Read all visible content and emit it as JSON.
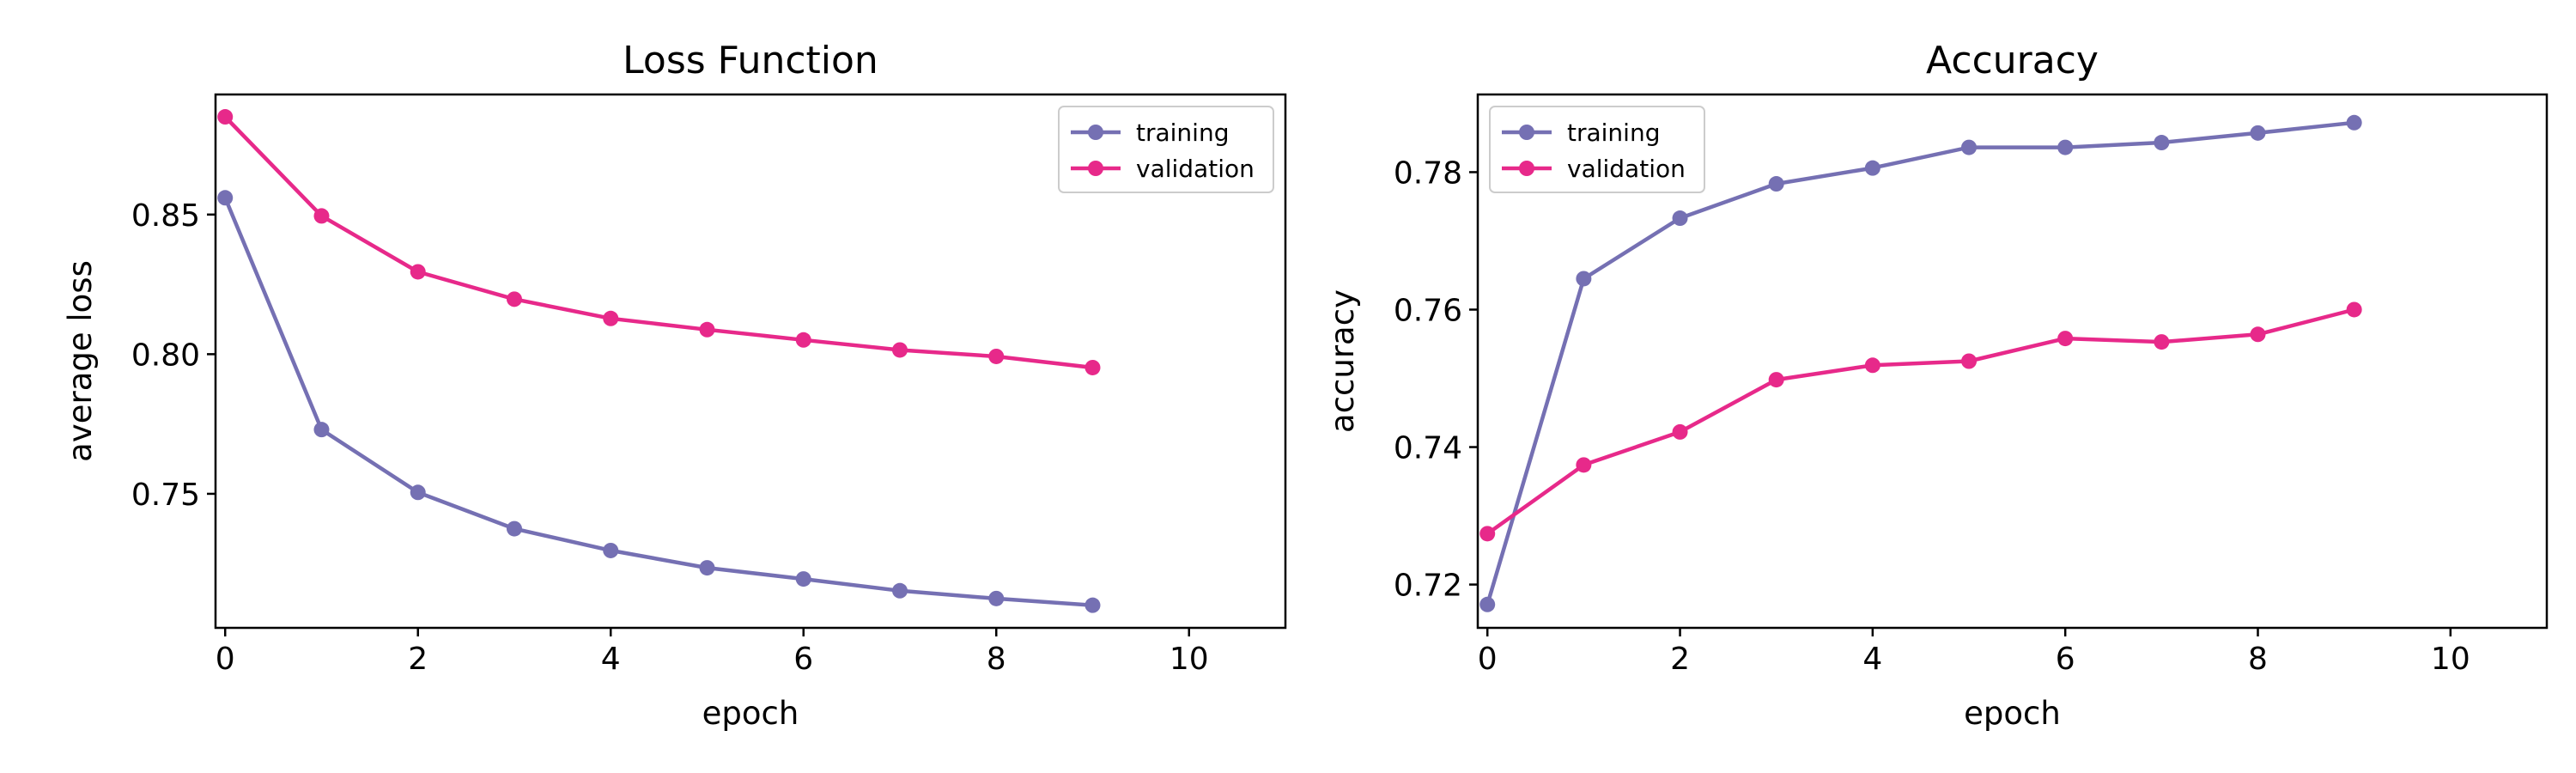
{
  "chart_data": [
    {
      "type": "line",
      "title": "Loss Function",
      "xlabel": "epoch",
      "ylabel": "average loss",
      "xlim": [
        -0.1,
        11
      ],
      "ylim": [
        0.702,
        0.893
      ],
      "xticks": [
        0,
        2,
        4,
        6,
        8,
        10
      ],
      "yticks": [
        0.75,
        0.8,
        0.85
      ],
      "ytick_labels": [
        "0.75",
        "0.80",
        "0.85"
      ],
      "legend_position": "top-right",
      "grid": false,
      "x": [
        0,
        1,
        2,
        3,
        4,
        5,
        6,
        7,
        8,
        9
      ],
      "series": [
        {
          "name": "training",
          "color": "#7570b3",
          "values": [
            0.856,
            0.773,
            0.7505,
            0.7375,
            0.7297,
            0.7235,
            0.7195,
            0.7153,
            0.7125,
            0.7101
          ]
        },
        {
          "name": "validation",
          "color": "#e7298a",
          "values": [
            0.885,
            0.8495,
            0.8295,
            0.8197,
            0.8128,
            0.8088,
            0.8051,
            0.8015,
            0.7992,
            0.7952
          ]
        }
      ]
    },
    {
      "type": "line",
      "title": "Accuracy",
      "xlabel": "epoch",
      "ylabel": "accuracy",
      "xlim": [
        -0.1,
        11
      ],
      "ylim": [
        0.7137,
        0.7913
      ],
      "xticks": [
        0,
        2,
        4,
        6,
        8,
        10
      ],
      "yticks": [
        0.72,
        0.74,
        0.76,
        0.78
      ],
      "ytick_labels": [
        "0.72",
        "0.74",
        "0.76",
        "0.78"
      ],
      "legend_position": "top-left",
      "grid": false,
      "x": [
        0,
        1,
        2,
        3,
        4,
        5,
        6,
        7,
        8,
        9
      ],
      "series": [
        {
          "name": "training",
          "color": "#7570b3",
          "values": [
            0.7171,
            0.7645,
            0.7733,
            0.7783,
            0.7806,
            0.7836,
            0.7836,
            0.7843,
            0.7857,
            0.7872
          ]
        },
        {
          "name": "validation",
          "color": "#e7298a",
          "values": [
            0.7274,
            0.7374,
            0.7422,
            0.7498,
            0.7519,
            0.7525,
            0.7558,
            0.7553,
            0.7564,
            0.76
          ]
        }
      ]
    }
  ]
}
